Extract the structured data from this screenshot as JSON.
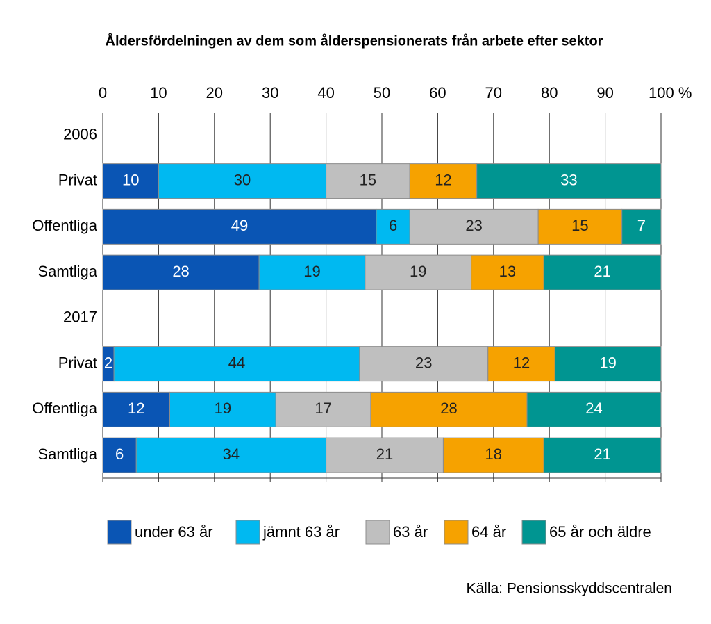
{
  "chart_data": {
    "type": "stacked-bar-horizontal",
    "title": "Åldersfördelningen av dem som ålderspensionerats från arbete efter sektor",
    "categories": [
      "2006",
      "Privat",
      "Offentliga",
      "Samtliga",
      "2017",
      "Privat",
      "Offentliga",
      "Samtliga"
    ],
    "series": [
      {
        "name": "under 63 år",
        "color": "#0a55b4",
        "values": [
          null,
          10,
          49,
          28,
          null,
          2,
          12,
          6
        ]
      },
      {
        "name": "jämnt 63 år",
        "color": "#00b9f1",
        "values": [
          null,
          30,
          6,
          19,
          null,
          44,
          19,
          34
        ]
      },
      {
        "name": "63 år",
        "color": "#bfbfbf",
        "values": [
          null,
          15,
          23,
          19,
          null,
          23,
          17,
          21
        ]
      },
      {
        "name": "64 år",
        "color": "#f6a200",
        "values": [
          null,
          12,
          15,
          13,
          null,
          12,
          28,
          18
        ]
      },
      {
        "name": "65 år och äldre",
        "color": "#009591",
        "values": [
          null,
          33,
          7,
          21,
          null,
          19,
          24,
          21
        ]
      }
    ],
    "xlim": [
      0,
      100
    ],
    "xticks": [
      0,
      10,
      20,
      30,
      40,
      50,
      60,
      70,
      80,
      90,
      {
        "value": 100,
        "label": "100 %"
      }
    ],
    "grid": true,
    "legend": "bottom",
    "source": "Källa: Pensionsskyddscentralen"
  }
}
